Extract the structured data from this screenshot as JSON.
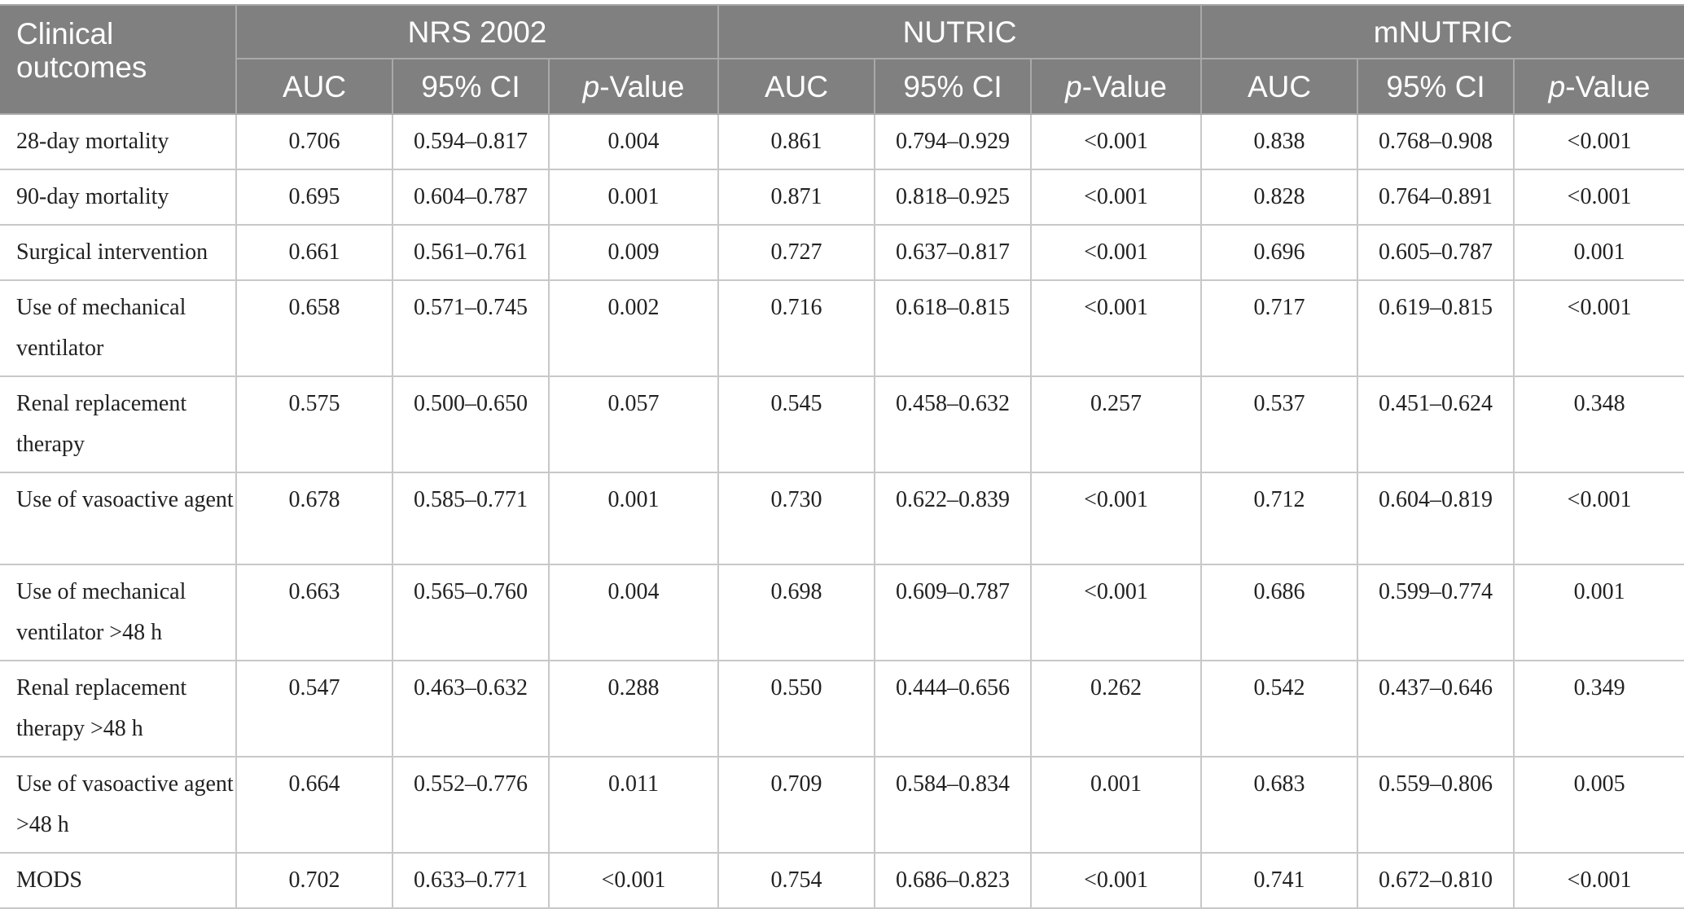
{
  "header": {
    "outcome_label": "Clinical outcomes",
    "groups": [
      "NRS 2002",
      "NUTRIC",
      "mNUTRIC"
    ],
    "sub_auc": "AUC",
    "sub_ci": "95% CI",
    "sub_p_italic": "p",
    "sub_p_rest": "-Value"
  },
  "rows": [
    {
      "outcome": "28-day mortality",
      "values": [
        "0.706",
        "0.594–0.817",
        "0.004",
        "0.861",
        "0.794–0.929",
        "<0.001",
        "0.838",
        "0.768–0.908",
        "<0.001"
      ]
    },
    {
      "outcome": "90-day mortality",
      "values": [
        "0.695",
        "0.604–0.787",
        "0.001",
        "0.871",
        "0.818–0.925",
        "<0.001",
        "0.828",
        "0.764–0.891",
        "<0.001"
      ]
    },
    {
      "outcome": "Surgical intervention",
      "values": [
        "0.661",
        "0.561–0.761",
        "0.009",
        "0.727",
        "0.637–0.817",
        "<0.001",
        "0.696",
        "0.605–0.787",
        "0.001"
      ]
    },
    {
      "outcome": "Use of mechanical ventilator",
      "values": [
        "0.658",
        "0.571–0.745",
        "0.002",
        "0.716",
        "0.618–0.815",
        "<0.001",
        "0.717",
        "0.619–0.815",
        "<0.001"
      ]
    },
    {
      "outcome": "Renal replacement therapy",
      "values": [
        "0.575",
        "0.500–0.650",
        "0.057",
        "0.545",
        "0.458–0.632",
        "0.257",
        "0.537",
        "0.451–0.624",
        "0.348"
      ]
    },
    {
      "outcome": "Use of vasoactive agent",
      "values": [
        "0.678",
        "0.585–0.771",
        "0.001",
        "0.730",
        "0.622–0.839",
        "<0.001",
        "0.712",
        "0.604–0.819",
        "<0.001"
      ]
    },
    {
      "outcome": "Use of mechanical ventilator >48 h",
      "values": [
        "0.663",
        "0.565–0.760",
        "0.004",
        "0.698",
        "0.609–0.787",
        "<0.001",
        "0.686",
        "0.599–0.774",
        "0.001"
      ]
    },
    {
      "outcome": "Renal replacement therapy >48 h",
      "values": [
        "0.547",
        "0.463–0.632",
        "0.288",
        "0.550",
        "0.444–0.656",
        "0.262",
        "0.542",
        "0.437–0.646",
        "0.349"
      ]
    },
    {
      "outcome": "Use of vasoactive agent >48 h",
      "values": [
        "0.664",
        "0.552–0.776",
        "0.011",
        "0.709",
        "0.584–0.834",
        "0.001",
        "0.683",
        "0.559–0.806",
        "0.005"
      ]
    },
    {
      "outcome": "MODS",
      "values": [
        "0.702",
        "0.633–0.771",
        "<0.001",
        "0.754",
        "0.686–0.823",
        "<0.001",
        "0.741",
        "0.672–0.810",
        "<0.001"
      ]
    }
  ]
}
